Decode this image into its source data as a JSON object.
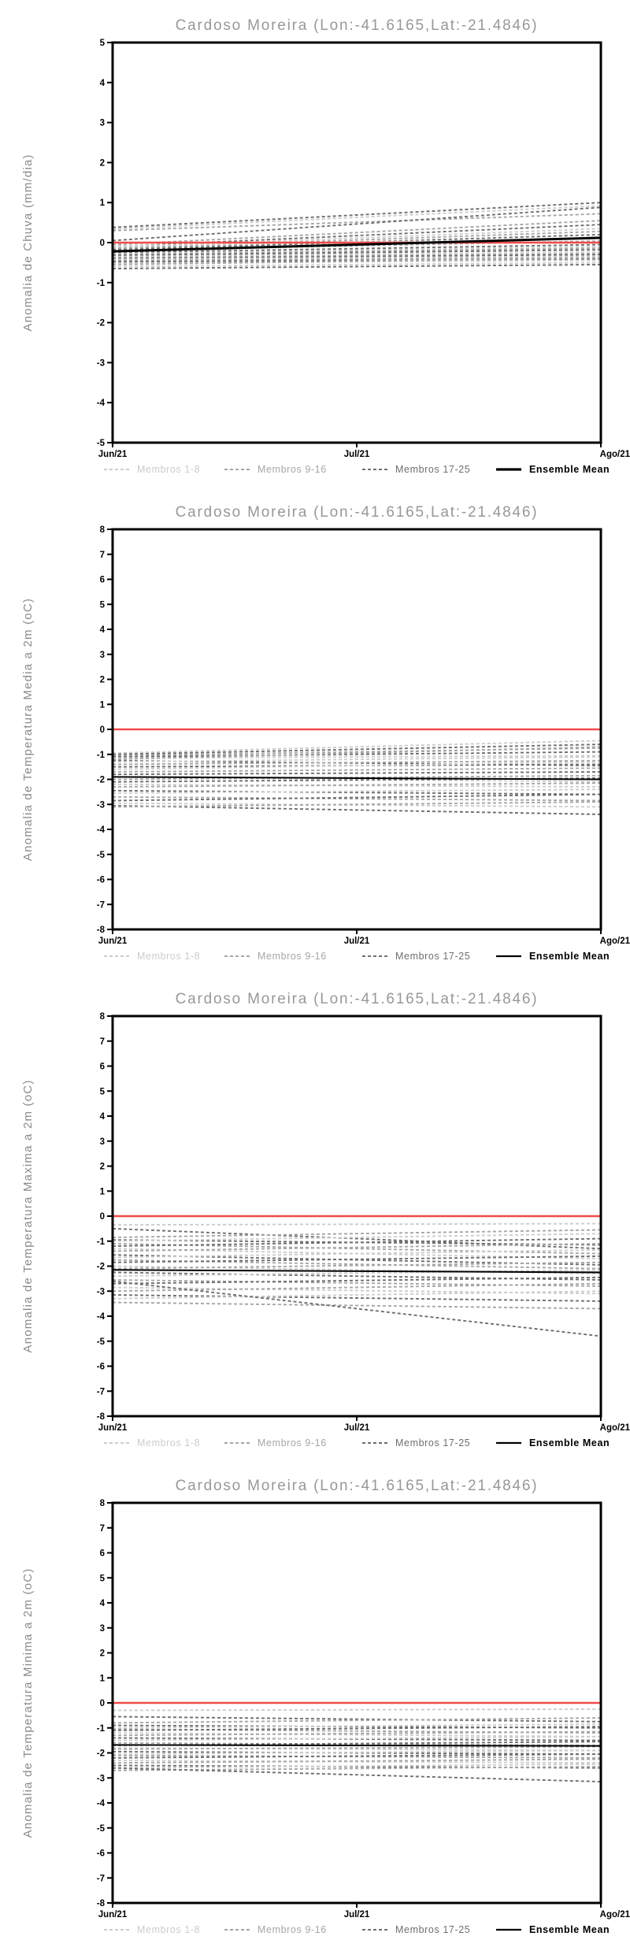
{
  "page_title": "Cardoso Moreira (Lon:-41.6165,Lat:-21.4846)",
  "colors": {
    "title": "#989898",
    "ylabel": "#8a8a8a",
    "axis": "#000000",
    "tick_label": "#000000",
    "zero_line": "#f04a4a",
    "mean": "#000000",
    "g1": "#cccccc",
    "g2": "#a6a6a6",
    "g3": "#6f6f6f"
  },
  "legend": [
    {
      "label": "Membros 1-8",
      "group": "g1",
      "style": "dashed"
    },
    {
      "label": "Membros 9-16",
      "group": "g2",
      "style": "dashed"
    },
    {
      "label": "Membros 17-25",
      "group": "g3",
      "style": "dashed"
    },
    {
      "label": "Ensemble Mean",
      "group": "mean",
      "style": "solid"
    }
  ],
  "x_tick_labels": [
    "Jun/21",
    "Jul/21",
    "Ago/21"
  ],
  "chart_data": [
    {
      "type": "line",
      "title": "Cardoso Moreira (Lon:-41.6165,Lat:-21.4846)",
      "ylabel": "Anomalia de Chuva (mm/dia)",
      "xlabel": "",
      "x": [
        "Jun/21",
        "Ago/21"
      ],
      "ylim": [
        -5,
        5
      ],
      "ytick_step": 1,
      "grid": false,
      "zero_line": 0,
      "ensemble_mean": {
        "start": -0.22,
        "end": 0.12
      },
      "members": [
        [
          "g3",
          0.38,
          1.0
        ],
        [
          "g1",
          0.34,
          0.92
        ],
        [
          "g2",
          0.3,
          0.72
        ],
        [
          "g3",
          0.05,
          0.88
        ],
        [
          "g2",
          -0.05,
          0.55
        ],
        [
          "g3",
          -0.1,
          0.45
        ],
        [
          "g1",
          -0.12,
          0.35
        ],
        [
          "g2",
          -0.15,
          0.28
        ],
        [
          "g3",
          -0.18,
          0.2
        ],
        [
          "g1",
          -0.08,
          0.1
        ],
        [
          "g2",
          -0.2,
          0.04
        ],
        [
          "g3",
          -0.25,
          -0.05
        ],
        [
          "g1",
          -0.28,
          -0.1
        ],
        [
          "g2",
          -0.3,
          -0.14
        ],
        [
          "g3",
          -0.32,
          -0.18
        ],
        [
          "g1",
          -0.35,
          -0.24
        ],
        [
          "g2",
          -0.38,
          -0.28
        ],
        [
          "g3",
          -0.4,
          -0.3
        ],
        [
          "g1",
          -0.42,
          -0.34
        ],
        [
          "g2",
          -0.45,
          -0.38
        ],
        [
          "g3",
          -0.48,
          -0.42
        ],
        [
          "g1",
          -0.52,
          -0.44
        ],
        [
          "g2",
          -0.55,
          -0.38
        ],
        [
          "g1",
          -0.6,
          -0.5
        ],
        [
          "g3",
          -0.65,
          -0.55
        ]
      ]
    },
    {
      "type": "line",
      "title": "Cardoso Moreira (Lon:-41.6165,Lat:-21.4846)",
      "ylabel": "Anomalia de Temperatura Media a 2m (oC)",
      "xlabel": "",
      "x": [
        "Jun/21",
        "Ago/21"
      ],
      "ylim": [
        -8,
        8
      ],
      "ytick_step": 1,
      "grid": false,
      "zero_line": 0,
      "ensemble_mean": {
        "start": -1.9,
        "end": -2.0
      },
      "members": [
        [
          "g1",
          -0.95,
          -0.45
        ],
        [
          "g3",
          -1.0,
          -0.6
        ],
        [
          "g2",
          -1.05,
          -0.75
        ],
        [
          "g3",
          -1.1,
          -0.9
        ],
        [
          "g1",
          -1.15,
          -1.05
        ],
        [
          "g2",
          -1.2,
          -0.7
        ],
        [
          "g3",
          -1.25,
          -1.45
        ],
        [
          "g1",
          -1.3,
          -1.1
        ],
        [
          "g2",
          -1.4,
          -1.25
        ],
        [
          "g3",
          -1.5,
          -1.4
        ],
        [
          "g1",
          -1.6,
          -1.3
        ],
        [
          "g2",
          -1.7,
          -1.55
        ],
        [
          "g3",
          -1.8,
          -1.7
        ],
        [
          "g1",
          -1.9,
          -2.1
        ],
        [
          "g2",
          -2.0,
          -1.85
        ],
        [
          "g3",
          -2.1,
          -1.95
        ],
        [
          "g1",
          -2.2,
          -2.3
        ],
        [
          "g2",
          -2.3,
          -2.15
        ],
        [
          "g3",
          -2.45,
          -2.6
        ],
        [
          "g1",
          -2.55,
          -2.4
        ],
        [
          "g2",
          -2.7,
          -2.85
        ],
        [
          "g3",
          -2.85,
          -2.6
        ],
        [
          "g1",
          -2.95,
          -3.1
        ],
        [
          "g3",
          -3.05,
          -3.4
        ],
        [
          "g2",
          -3.1,
          -2.9
        ]
      ]
    },
    {
      "type": "line",
      "title": "Cardoso Moreira (Lon:-41.6165,Lat:-21.4846)",
      "ylabel": "Anomalia de Temperatura Maxima a 2m (oC)",
      "xlabel": "",
      "x": [
        "Jun/21",
        "Ago/21"
      ],
      "ylim": [
        -8,
        8
      ],
      "ytick_step": 1,
      "grid": false,
      "zero_line": 0,
      "ensemble_mean": {
        "start": -2.15,
        "end": -2.25
      },
      "members": [
        [
          "g1",
          -0.35,
          -0.3
        ],
        [
          "g3",
          -0.5,
          -1.3
        ],
        [
          "g2",
          -0.85,
          -0.55
        ],
        [
          "g3",
          -0.95,
          -1.15
        ],
        [
          "g1",
          -1.0,
          -0.7
        ],
        [
          "g2",
          -1.1,
          -1.5
        ],
        [
          "g3",
          -1.2,
          -0.9
        ],
        [
          "g1",
          -1.3,
          -1.7
        ],
        [
          "g2",
          -1.4,
          -1.1
        ],
        [
          "g3",
          -1.55,
          -1.95
        ],
        [
          "g1",
          -1.65,
          -1.35
        ],
        [
          "g2",
          -1.75,
          -2.1
        ],
        [
          "g3",
          -1.85,
          -1.6
        ],
        [
          "g1",
          -2.0,
          -2.3
        ],
        [
          "g2",
          -2.1,
          -1.85
        ],
        [
          "g3",
          -2.25,
          -2.55
        ],
        [
          "g1",
          -2.4,
          -2.15
        ],
        [
          "g2",
          -2.55,
          -2.8
        ],
        [
          "g3",
          -2.7,
          -2.45
        ],
        [
          "g1",
          -2.85,
          -3.1
        ],
        [
          "g2",
          -3.0,
          -2.7
        ],
        [
          "g3",
          -3.15,
          -3.4
        ],
        [
          "g1",
          -3.3,
          -3.0
        ],
        [
          "g2",
          -3.45,
          -3.7
        ],
        [
          "g3",
          -2.6,
          -4.8
        ]
      ]
    },
    {
      "type": "line",
      "title": "Cardoso Moreira (Lon:-41.6165,Lat:-21.4846)",
      "ylabel": "Anomalia de Temperatura Minima a 2m (oC)",
      "xlabel": "",
      "x": [
        "Jun/21",
        "Ago/21"
      ],
      "ylim": [
        -8,
        8
      ],
      "ytick_step": 1,
      "grid": false,
      "zero_line": 0,
      "ensemble_mean": {
        "start": -1.68,
        "end": -1.72
      },
      "members": [
        [
          "g1",
          -0.3,
          -0.25
        ],
        [
          "g3",
          -0.55,
          -0.75
        ],
        [
          "g2",
          -0.8,
          -0.6
        ],
        [
          "g3",
          -0.9,
          -1.0
        ],
        [
          "g1",
          -1.0,
          -0.85
        ],
        [
          "g2",
          -1.05,
          -1.2
        ],
        [
          "g3",
          -1.1,
          -0.95
        ],
        [
          "g1",
          -1.2,
          -1.35
        ],
        [
          "g2",
          -1.3,
          -1.15
        ],
        [
          "g3",
          -1.4,
          -1.5
        ],
        [
          "g1",
          -1.5,
          -1.35
        ],
        [
          "g2",
          -1.6,
          -1.7
        ],
        [
          "g3",
          -1.7,
          -1.55
        ],
        [
          "g1",
          -1.8,
          -1.9
        ],
        [
          "g2",
          -1.85,
          -1.75
        ],
        [
          "g3",
          -1.95,
          -2.05
        ],
        [
          "g1",
          -2.05,
          -1.9
        ],
        [
          "g2",
          -2.1,
          -2.2
        ],
        [
          "g3",
          -2.2,
          -2.05
        ],
        [
          "g1",
          -2.3,
          -2.4
        ],
        [
          "g2",
          -2.4,
          -2.25
        ],
        [
          "g3",
          -2.5,
          -2.6
        ],
        [
          "g1",
          -2.6,
          -2.45
        ],
        [
          "g2",
          -2.7,
          -2.55
        ],
        [
          "g3",
          -2.6,
          -3.15
        ]
      ]
    }
  ]
}
